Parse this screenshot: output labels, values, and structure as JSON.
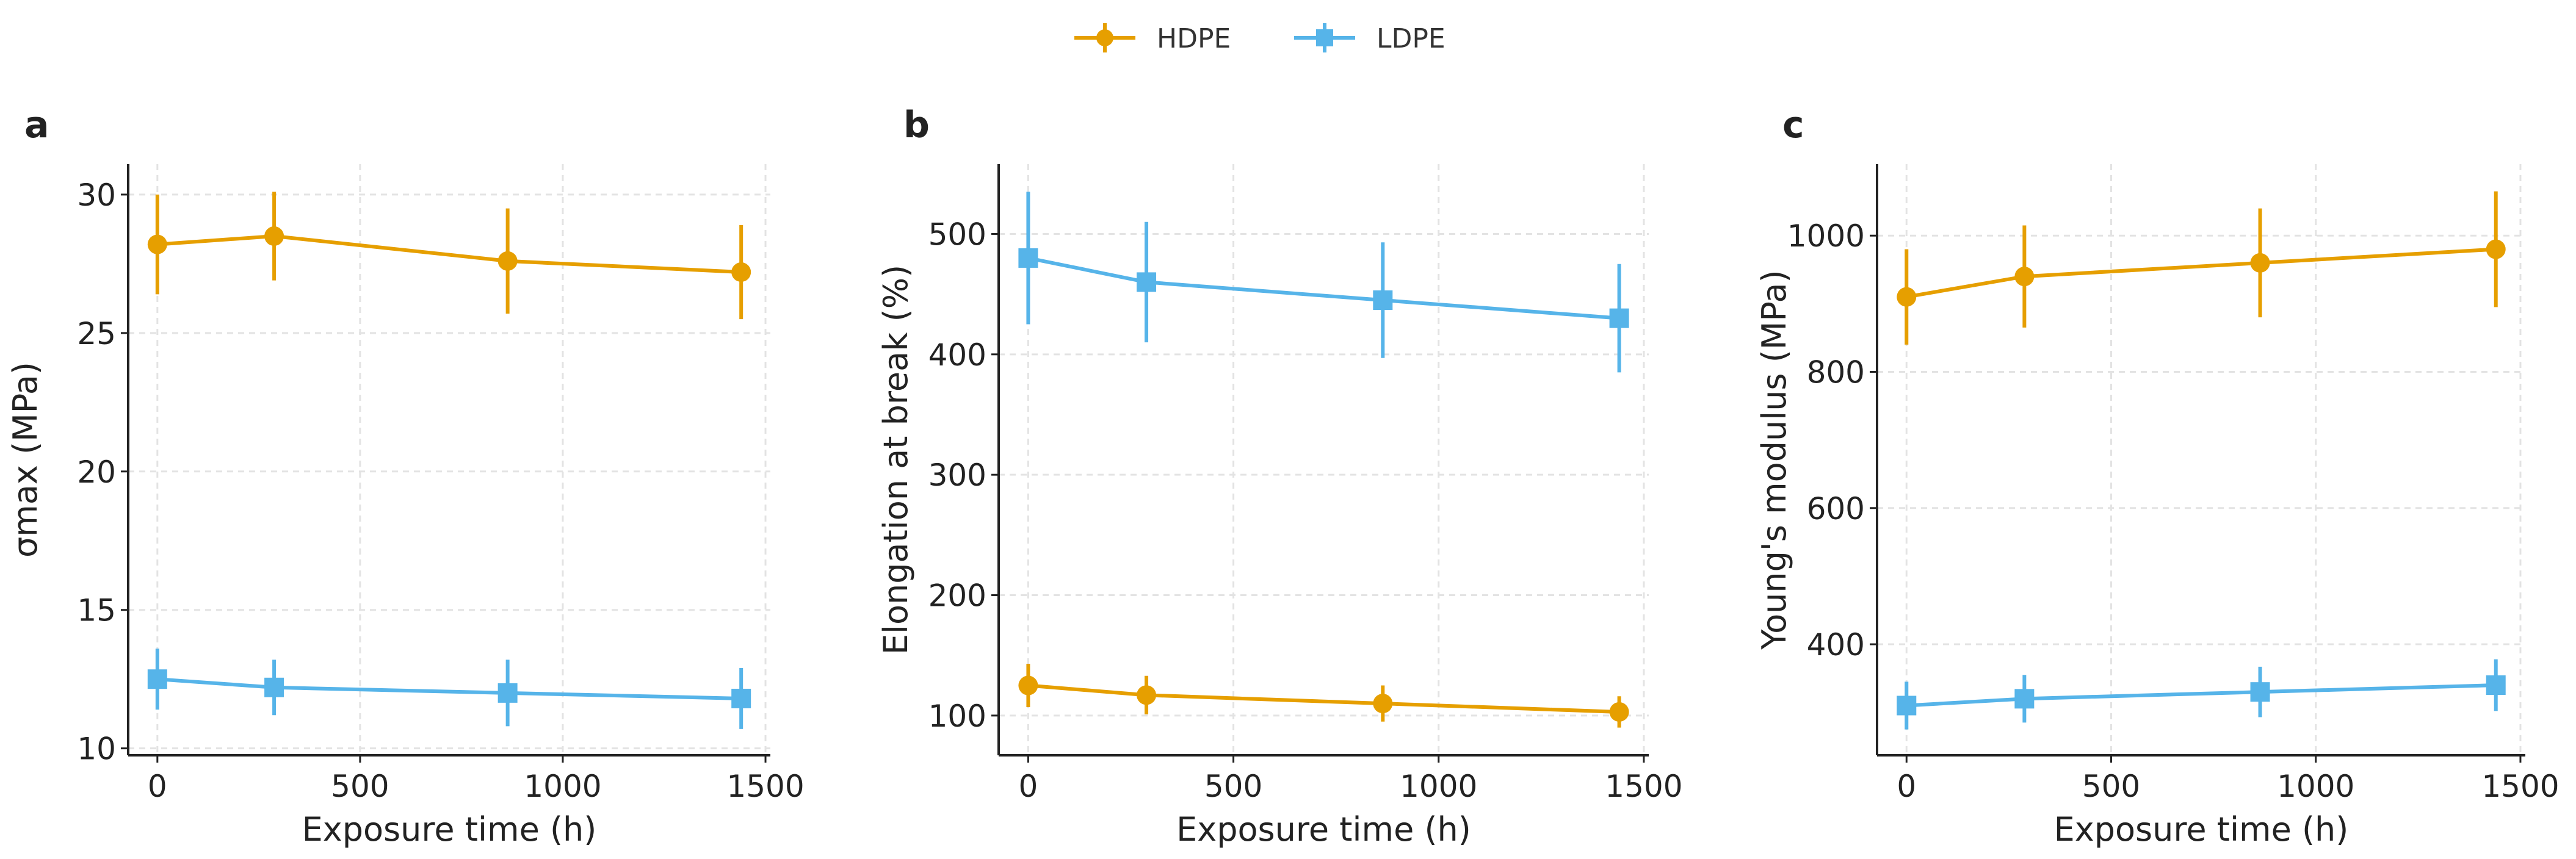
{
  "legend": [
    {
      "name": "HDPE",
      "color": "#E69F00",
      "marker": "circle"
    },
    {
      "name": "LDPE",
      "color": "#56B4E9",
      "marker": "square"
    }
  ],
  "chart_data": [
    {
      "type": "line",
      "panel_label": "a",
      "xlabel": "Exposure time (h)",
      "ylabel": "σmax (MPa)",
      "x": [
        0,
        288,
        864,
        1440
      ],
      "xlim": [
        -72,
        1512
      ],
      "ylim": [
        9.75,
        31.1
      ],
      "xticks": [
        "0",
        "500",
        "1000",
        "1500"
      ],
      "yticks": [
        "10",
        "15",
        "20",
        "25",
        "30"
      ],
      "grid": true,
      "series": [
        {
          "name": "HDPE",
          "values": [
            28.2,
            28.5,
            27.6,
            27.2
          ],
          "errors": [
            1.8,
            1.6,
            1.9,
            1.7
          ]
        },
        {
          "name": "LDPE",
          "values": [
            12.5,
            12.2,
            12.0,
            11.8
          ],
          "errors": [
            1.1,
            1.0,
            1.2,
            1.1
          ]
        }
      ]
    },
    {
      "type": "line",
      "panel_label": "b",
      "xlabel": "Exposure time (h)",
      "ylabel": "Elongation at break (%)",
      "x": [
        0,
        288,
        864,
        1440
      ],
      "xlim": [
        -72,
        1512
      ],
      "ylim": [
        67,
        558
      ],
      "xticks": [
        "0",
        "500",
        "1000",
        "1500"
      ],
      "yticks": [
        "100",
        "200",
        "300",
        "400",
        "500"
      ],
      "grid": true,
      "series": [
        {
          "name": "HDPE",
          "values": [
            125,
            117,
            110,
            103
          ],
          "errors": [
            18,
            16,
            15,
            13
          ]
        },
        {
          "name": "LDPE",
          "values": [
            480,
            460,
            445,
            430
          ],
          "errors": [
            55,
            50,
            48,
            45
          ]
        }
      ]
    },
    {
      "type": "line",
      "panel_label": "c",
      "xlabel": "Exposure time (h)",
      "ylabel": "Young's modulus (MPa)",
      "x": [
        0,
        288,
        864,
        1440
      ],
      "xlim": [
        -72,
        1512
      ],
      "ylim": [
        237,
        1105
      ],
      "xticks": [
        "0",
        "500",
        "1000",
        "1500"
      ],
      "yticks": [
        "400",
        "600",
        "800",
        "1000"
      ],
      "grid": true,
      "series": [
        {
          "name": "HDPE",
          "values": [
            910,
            940,
            960,
            980
          ],
          "errors": [
            70,
            75,
            80,
            85
          ]
        },
        {
          "name": "LDPE",
          "values": [
            310,
            320,
            330,
            340
          ],
          "errors": [
            35,
            35,
            37,
            38
          ]
        }
      ]
    }
  ]
}
